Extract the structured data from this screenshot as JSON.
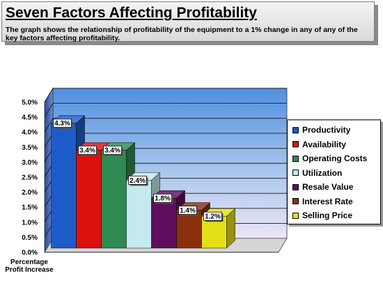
{
  "header": {
    "title": "Seven Factors Affecting Profitability",
    "subtitle": "The graph shows the relationship of profitability of the equipment to a 1% change in any of any of the key factors affecting profitability."
  },
  "chart_data": {
    "type": "bar",
    "view": "3d",
    "categories": [
      "Productivity",
      "Availability",
      "Operating Costs",
      "Utilization",
      "Resale Value",
      "Interest Rate",
      "Selling Price"
    ],
    "values": [
      4.3,
      3.4,
      3.4,
      2.4,
      1.8,
      1.4,
      1.2
    ],
    "data_labels": [
      "4.3%",
      "3.4%",
      "3.4%",
      "2.4%",
      "1.8%",
      "1.4%",
      "1.2%"
    ],
    "colors": [
      "#1d5cc8",
      "#dd1010",
      "#2f8a52",
      "#c4e9ee",
      "#5e0e5c",
      "#8a2f0c",
      "#e5e015"
    ],
    "ylabel": "Percentage Profit Increase",
    "ylim": [
      0,
      5
    ],
    "yticks": [
      "0.0%",
      "0.5%",
      "1.0%",
      "1.5%",
      "2.0%",
      "2.5%",
      "3.0%",
      "3.5%",
      "4.0%",
      "4.5%",
      "5.0%"
    ],
    "grid": true,
    "legend_position": "right"
  }
}
